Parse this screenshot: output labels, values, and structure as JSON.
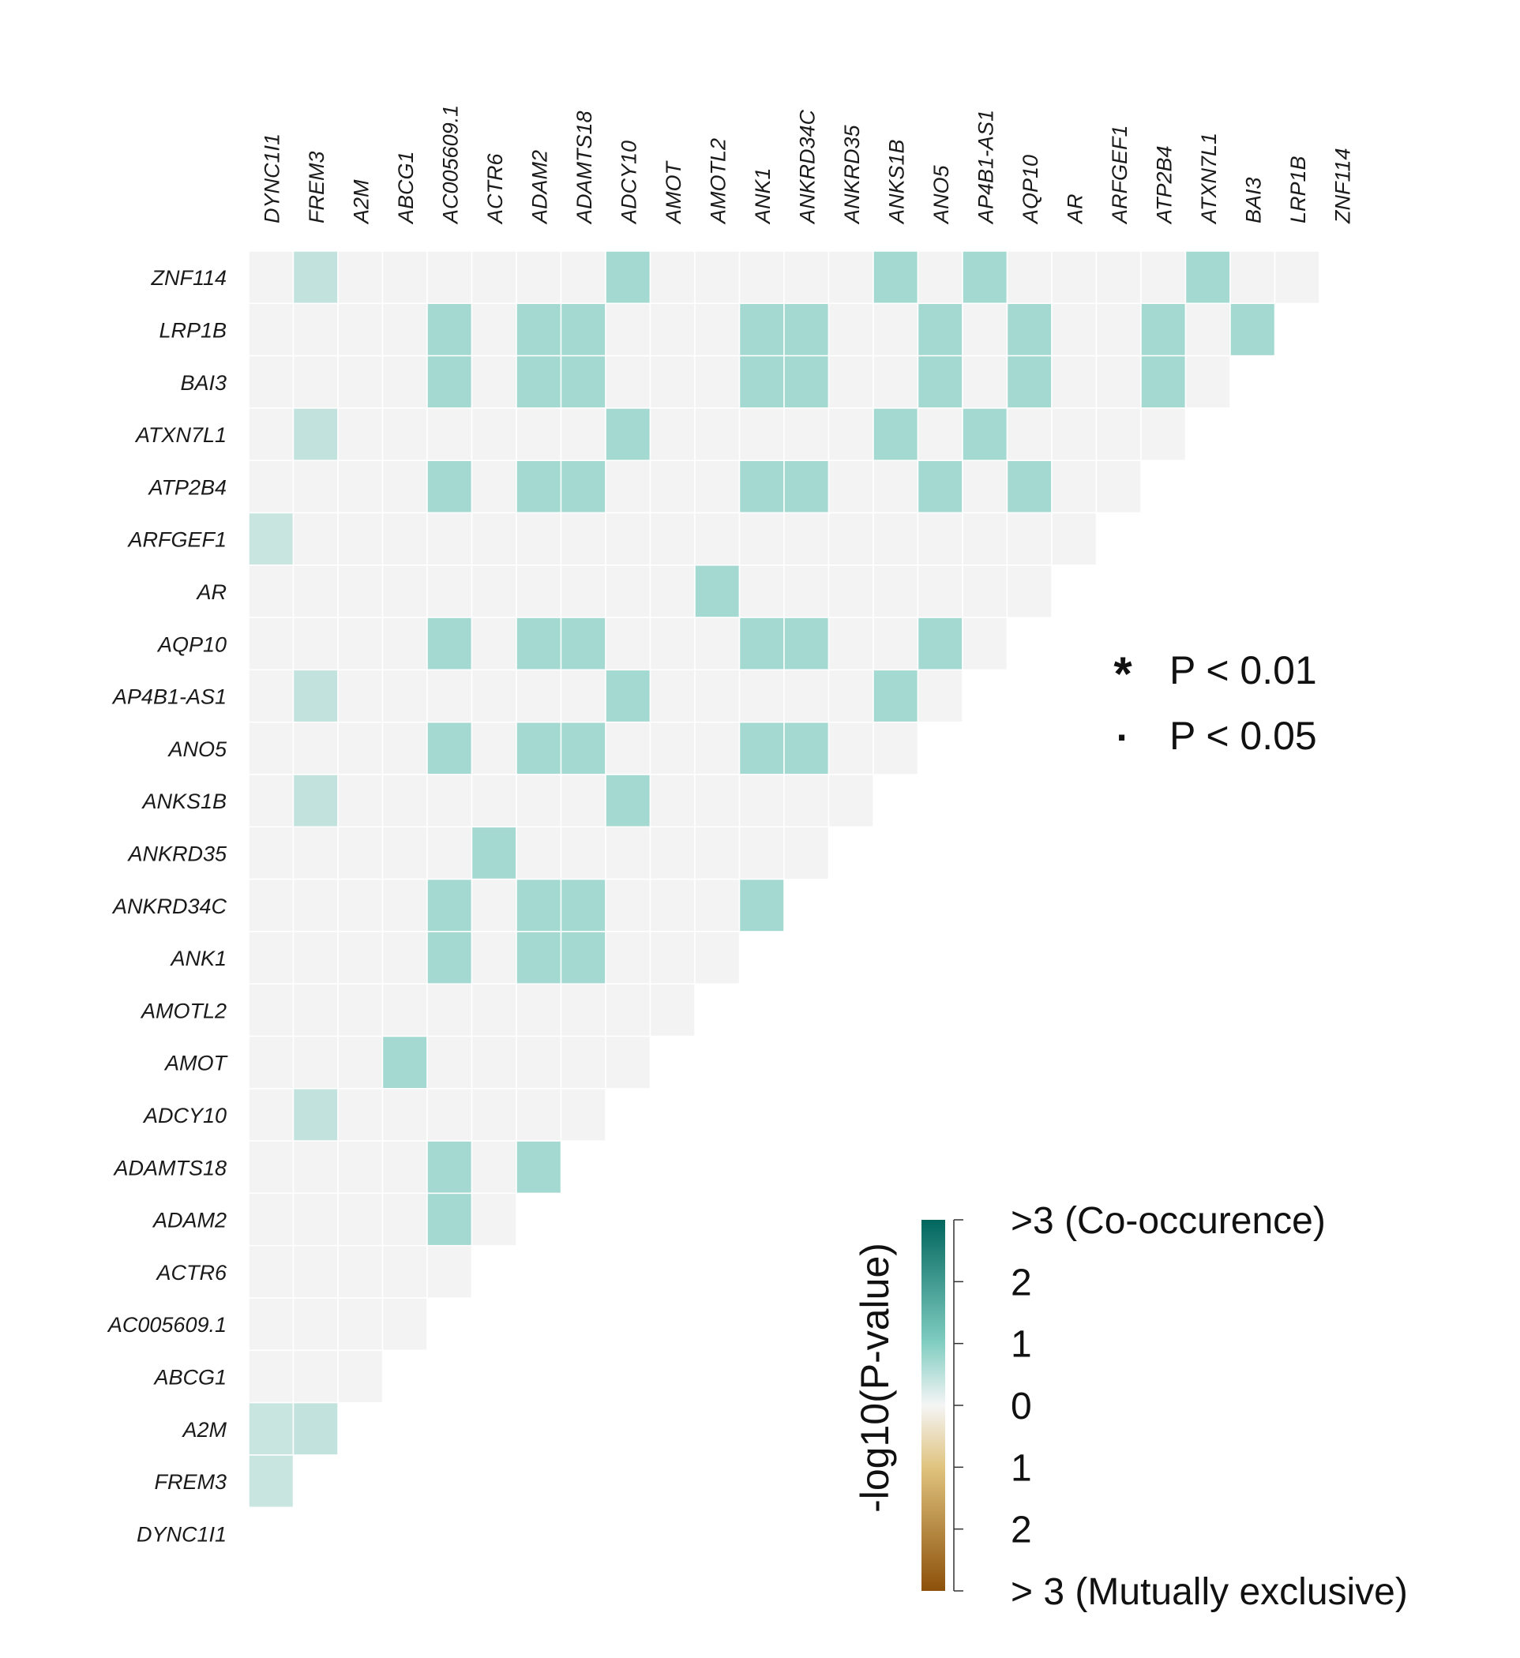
{
  "chart_data": {
    "type": "heatmap",
    "genes": [
      "DYNC1I1",
      "FREM3",
      "A2M",
      "ABCG1",
      "AC005609.1",
      "ACTR6",
      "ADAM2",
      "ADAMTS18",
      "ADCY10",
      "AMOT",
      "AMOTL2",
      "ANK1",
      "ANKRD34C",
      "ANKRD35",
      "ANKS1B",
      "ANO5",
      "AP4B1-AS1",
      "AQP10",
      "AR",
      "ARFGEF1",
      "ATP2B4",
      "ATXN7L1",
      "BAI3",
      "LRP1B",
      "ZNF114"
    ],
    "column_labels": [
      "DYNC1I1",
      "FREM3",
      "A2M",
      "ABCG1",
      "AC005609.1",
      "ACTR6",
      "ADAM2",
      "ADAMTS18",
      "ADCY10",
      "AMOT",
      "AMOTL2",
      "ANK1",
      "ANKRD34C",
      "ANKRD35",
      "ANKS1B",
      "ANO5",
      "AP4B1-AS1",
      "AQP10",
      "AR",
      "ARFGEF1",
      "ATP2B4",
      "ATXN7L1",
      "BAI3",
      "LRP1B",
      "ZNF114"
    ],
    "row_labels": [
      "ZNF114",
      "LRP1B",
      "BAI3",
      "ATXN7L1",
      "ATP2B4",
      "ARFGEF1",
      "AR",
      "AQP10",
      "AP4B1-AS1",
      "ANO5",
      "ANKS1B",
      "ANKRD35",
      "ANKRD34C",
      "ANK1",
      "AMOTL2",
      "AMOT",
      "ADCY10",
      "ADAMTS18",
      "ADAM2",
      "ACTR6",
      "AC005609.1",
      "ABCG1",
      "A2M",
      "FREM3",
      "DYNC1I1"
    ],
    "values_note_scale": "-log10(P-value), positive = co-occurrence, negative = mutually exclusive",
    "cells": [
      {
        "row": "ZNF114",
        "values": [
          0,
          0.7,
          0,
          0,
          0,
          0,
          0,
          0,
          1.1,
          0,
          0,
          0,
          0,
          0,
          1.1,
          0,
          1.1,
          0,
          0,
          0,
          0,
          1.1,
          0,
          0
        ]
      },
      {
        "row": "LRP1B",
        "values": [
          0,
          0,
          0,
          0,
          1.1,
          0,
          1.1,
          1.1,
          0,
          0,
          0,
          1.1,
          1.1,
          0,
          0,
          1.1,
          0,
          1.1,
          0,
          0,
          1.1,
          0,
          1.1
        ]
      },
      {
        "row": "BAI3",
        "values": [
          0,
          0,
          0,
          0,
          1.1,
          0,
          1.1,
          1.1,
          0,
          0,
          0,
          1.1,
          1.1,
          0,
          0,
          1.1,
          0,
          1.1,
          0,
          0,
          1.1,
          0
        ]
      },
      {
        "row": "ATXN7L1",
        "values": [
          0,
          0.7,
          0,
          0,
          0,
          0,
          0,
          0,
          1.1,
          0,
          0,
          0,
          0,
          0,
          1.1,
          0,
          1.1,
          0,
          0,
          0,
          0
        ]
      },
      {
        "row": "ATP2B4",
        "values": [
          0,
          0,
          0,
          0,
          1.1,
          0,
          1.1,
          1.1,
          0,
          0,
          0,
          1.1,
          1.1,
          0,
          0,
          1.1,
          0,
          1.1,
          0,
          0
        ]
      },
      {
        "row": "ARFGEF1",
        "values": [
          0.6,
          0,
          0,
          0,
          0,
          0,
          0,
          0,
          0,
          0,
          0,
          0,
          0,
          0,
          0,
          0,
          0,
          0,
          0
        ]
      },
      {
        "row": "AR",
        "values": [
          0,
          0,
          0,
          0,
          0,
          0,
          0,
          0,
          0,
          0,
          1.1,
          0,
          0,
          0,
          0,
          0,
          0,
          0
        ]
      },
      {
        "row": "AQP10",
        "values": [
          0,
          0,
          0,
          0,
          1.1,
          0,
          1.1,
          1.1,
          0,
          0,
          0,
          1.1,
          1.1,
          0,
          0,
          1.1,
          0
        ]
      },
      {
        "row": "AP4B1-AS1",
        "values": [
          0,
          0.7,
          0,
          0,
          0,
          0,
          0,
          0,
          1.1,
          0,
          0,
          0,
          0,
          0,
          1.1,
          0
        ]
      },
      {
        "row": "ANO5",
        "values": [
          0,
          0,
          0,
          0,
          1.1,
          0,
          1.1,
          1.1,
          0,
          0,
          0,
          1.1,
          1.1,
          0,
          0
        ]
      },
      {
        "row": "ANKS1B",
        "values": [
          0,
          0.7,
          0,
          0,
          0,
          0,
          0,
          0,
          1.1,
          0,
          0,
          0,
          0,
          0
        ]
      },
      {
        "row": "ANKRD35",
        "values": [
          0,
          0,
          0,
          0,
          0,
          1.1,
          0,
          0,
          0,
          0,
          0,
          0,
          0
        ]
      },
      {
        "row": "ANKRD34C",
        "values": [
          0,
          0,
          0,
          0,
          1.1,
          0,
          1.1,
          1.1,
          0,
          0,
          0,
          1.1
        ]
      },
      {
        "row": "ANK1",
        "values": [
          0,
          0,
          0,
          0,
          1.1,
          0,
          1.1,
          1.1,
          0,
          0,
          0
        ]
      },
      {
        "row": "AMOTL2",
        "values": [
          0,
          0,
          0,
          0,
          0,
          0,
          0,
          0,
          0,
          0
        ]
      },
      {
        "row": "AMOT",
        "values": [
          0,
          0,
          0,
          1.1,
          0,
          0,
          0,
          0,
          0
        ]
      },
      {
        "row": "ADCY10",
        "values": [
          0,
          0.7,
          0,
          0,
          0,
          0,
          0,
          0
        ]
      },
      {
        "row": "ADAMTS18",
        "values": [
          0,
          0,
          0,
          0,
          1.1,
          0,
          1.1
        ]
      },
      {
        "row": "ADAM2",
        "values": [
          0,
          0,
          0,
          0,
          1.1,
          0
        ]
      },
      {
        "row": "ACTR6",
        "values": [
          0,
          0,
          0,
          0,
          0
        ]
      },
      {
        "row": "AC005609.1",
        "values": [
          0,
          0,
          0,
          0
        ]
      },
      {
        "row": "ABCG1",
        "values": [
          0,
          0,
          0
        ]
      },
      {
        "row": "A2M",
        "values": [
          0.6,
          0.7
        ]
      },
      {
        "row": "FREM3",
        "values": [
          0.6
        ]
      },
      {
        "row": "DYNC1I1",
        "values": []
      }
    ]
  },
  "legend": {
    "sig_items": [
      {
        "symbol": "*",
        "label": "P < 0.01"
      },
      {
        "symbol": "·",
        "label": "P < 0.05"
      }
    ],
    "colorbar": {
      "title": "-log10(P-value)",
      "tick_labels": [
        ">3 (Co-occurence)",
        "2",
        "1",
        "0",
        "1",
        "2",
        "> 3 (Mutually exclusive)"
      ],
      "range": [
        -3,
        3
      ],
      "colors": {
        "co_occurrence": "#01665e",
        "mid_teal": "#80cdc1",
        "neutral": "#f5f5f5",
        "mid_brown": "#dfc27d",
        "mutually_exclusive": "#8c510a"
      }
    }
  },
  "colors": {
    "empty_cell": "#f3f3f3",
    "grid_line": "#ffffff"
  }
}
